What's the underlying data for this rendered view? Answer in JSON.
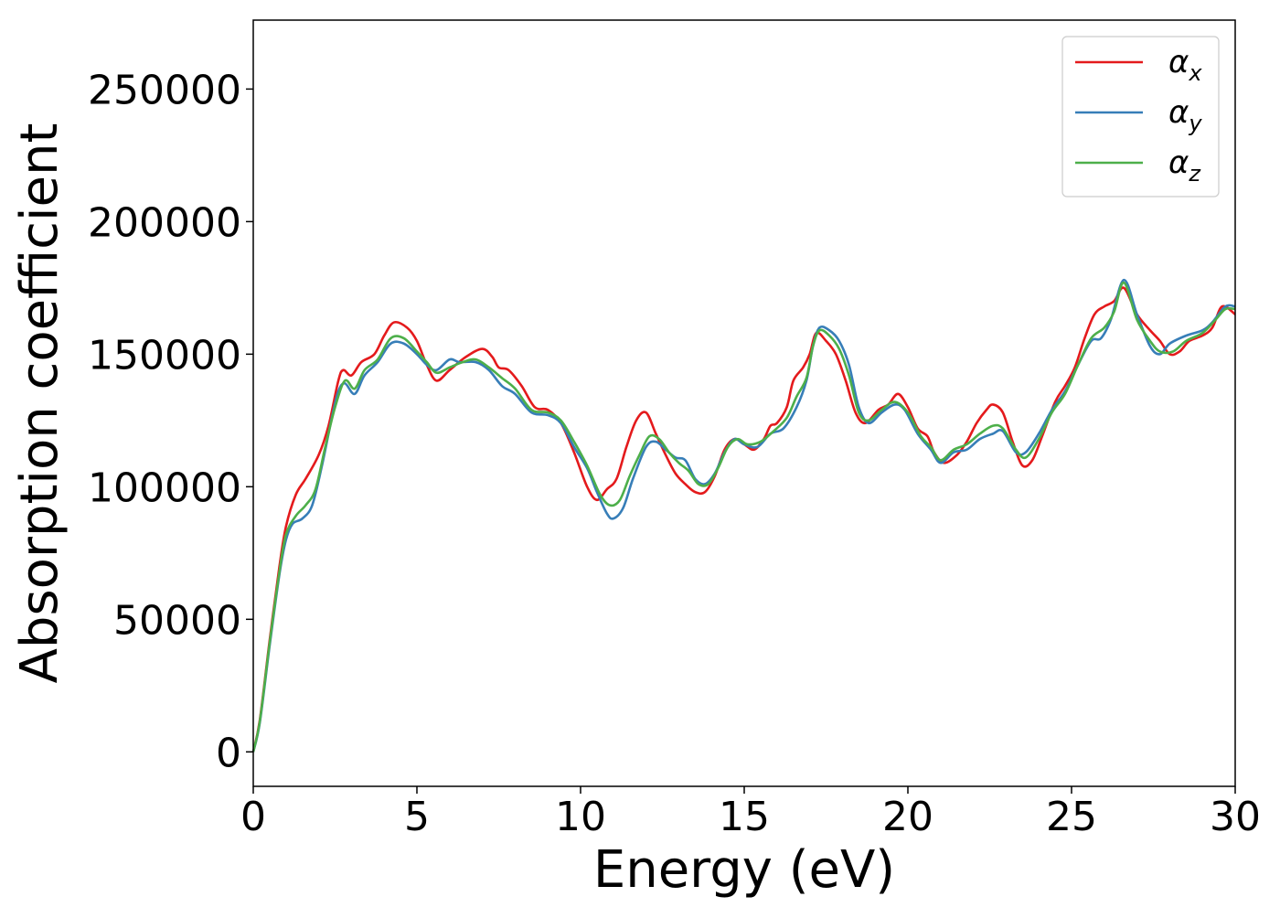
{
  "chart_data": {
    "type": "line",
    "title": "",
    "xlabel": "Energy (eV)",
    "ylabel": "Absorption coefficient",
    "xlim": [
      0,
      30
    ],
    "ylim": [
      -13000,
      276000
    ],
    "x_ticks": [
      0,
      5,
      10,
      15,
      20,
      25,
      30
    ],
    "y_ticks": [
      0,
      50000,
      100000,
      150000,
      200000,
      250000
    ],
    "x_tick_labels": [
      "0",
      "5",
      "10",
      "15",
      "20",
      "25",
      "30"
    ],
    "y_tick_labels": [
      "0",
      "50000",
      "100000",
      "150000",
      "200000",
      "250000"
    ],
    "grid": false,
    "legend_position": "top-right",
    "series": [
      {
        "name": "αx",
        "symbol": "α",
        "subscript": "x",
        "color": "#e41a1c",
        "points": [
          [
            0,
            0
          ],
          [
            0.2,
            12000
          ],
          [
            0.5,
            42000
          ],
          [
            0.8,
            70000
          ],
          [
            1.0,
            85000
          ],
          [
            1.3,
            97000
          ],
          [
            1.6,
            103000
          ],
          [
            2.0,
            112000
          ],
          [
            2.3,
            123000
          ],
          [
            2.6,
            140000
          ],
          [
            2.75,
            144000
          ],
          [
            3.0,
            142000
          ],
          [
            3.3,
            147000
          ],
          [
            3.7,
            150000
          ],
          [
            4.0,
            157000
          ],
          [
            4.3,
            162000
          ],
          [
            4.7,
            160000
          ],
          [
            5.0,
            155000
          ],
          [
            5.3,
            146000
          ],
          [
            5.6,
            140000
          ],
          [
            6.0,
            144000
          ],
          [
            6.5,
            149000
          ],
          [
            7.0,
            152000
          ],
          [
            7.3,
            149000
          ],
          [
            7.5,
            145000
          ],
          [
            7.8,
            144000
          ],
          [
            8.2,
            138000
          ],
          [
            8.6,
            130000
          ],
          [
            9.0,
            129000
          ],
          [
            9.4,
            124000
          ],
          [
            9.8,
            113000
          ],
          [
            10.2,
            100000
          ],
          [
            10.5,
            95000
          ],
          [
            10.8,
            99000
          ],
          [
            11.1,
            103000
          ],
          [
            11.4,
            115000
          ],
          [
            11.7,
            125000
          ],
          [
            12.0,
            128000
          ],
          [
            12.3,
            120000
          ],
          [
            12.6,
            112000
          ],
          [
            12.9,
            105000
          ],
          [
            13.2,
            101000
          ],
          [
            13.5,
            98000
          ],
          [
            13.8,
            98000
          ],
          [
            14.1,
            104000
          ],
          [
            14.4,
            114000
          ],
          [
            14.7,
            118000
          ],
          [
            15.0,
            116000
          ],
          [
            15.3,
            114000
          ],
          [
            15.6,
            118000
          ],
          [
            15.8,
            123000
          ],
          [
            16.0,
            124000
          ],
          [
            16.3,
            130000
          ],
          [
            16.5,
            140000
          ],
          [
            16.8,
            145000
          ],
          [
            17.0,
            150000
          ],
          [
            17.2,
            158000
          ],
          [
            17.5,
            155000
          ],
          [
            17.8,
            150000
          ],
          [
            18.1,
            140000
          ],
          [
            18.4,
            128000
          ],
          [
            18.7,
            124000
          ],
          [
            19.1,
            129000
          ],
          [
            19.4,
            131000
          ],
          [
            19.7,
            135000
          ],
          [
            20.0,
            130000
          ],
          [
            20.3,
            122000
          ],
          [
            20.6,
            119000
          ],
          [
            20.8,
            113000
          ],
          [
            21.1,
            109000
          ],
          [
            21.5,
            112000
          ],
          [
            21.8,
            117000
          ],
          [
            22.1,
            124000
          ],
          [
            22.4,
            129000
          ],
          [
            22.6,
            131000
          ],
          [
            22.9,
            128000
          ],
          [
            23.2,
            117000
          ],
          [
            23.5,
            108000
          ],
          [
            23.8,
            110000
          ],
          [
            24.1,
            119000
          ],
          [
            24.5,
            132000
          ],
          [
            24.8,
            138000
          ],
          [
            25.1,
            145000
          ],
          [
            25.4,
            156000
          ],
          [
            25.7,
            165000
          ],
          [
            26.0,
            168000
          ],
          [
            26.3,
            170000
          ],
          [
            26.6,
            175000
          ],
          [
            27.0,
            165000
          ],
          [
            27.4,
            159000
          ],
          [
            27.7,
            155000
          ],
          [
            28.0,
            150000
          ],
          [
            28.3,
            151000
          ],
          [
            28.6,
            155000
          ],
          [
            29.0,
            157000
          ],
          [
            29.3,
            160000
          ],
          [
            29.6,
            168000
          ],
          [
            30.0,
            165000
          ]
        ]
      },
      {
        "name": "αy",
        "symbol": "α",
        "subscript": "y",
        "color": "#377eb8",
        "points": [
          [
            0,
            0
          ],
          [
            0.2,
            11000
          ],
          [
            0.5,
            40000
          ],
          [
            0.8,
            67000
          ],
          [
            1.0,
            80000
          ],
          [
            1.2,
            86000
          ],
          [
            1.5,
            88000
          ],
          [
            1.8,
            93000
          ],
          [
            2.1,
            108000
          ],
          [
            2.4,
            126000
          ],
          [
            2.6,
            136000
          ],
          [
            2.8,
            139000
          ],
          [
            3.1,
            135000
          ],
          [
            3.4,
            142000
          ],
          [
            3.8,
            147000
          ],
          [
            4.2,
            154000
          ],
          [
            4.6,
            154000
          ],
          [
            5.0,
            150000
          ],
          [
            5.3,
            146000
          ],
          [
            5.6,
            144000
          ],
          [
            6.0,
            148000
          ],
          [
            6.3,
            147000
          ],
          [
            6.8,
            147000
          ],
          [
            7.2,
            144000
          ],
          [
            7.6,
            138000
          ],
          [
            8.0,
            135000
          ],
          [
            8.5,
            128000
          ],
          [
            9.0,
            127000
          ],
          [
            9.4,
            124000
          ],
          [
            9.8,
            115000
          ],
          [
            10.2,
            107000
          ],
          [
            10.5,
            98000
          ],
          [
            10.8,
            90000
          ],
          [
            11.0,
            88000
          ],
          [
            11.3,
            92000
          ],
          [
            11.6,
            103000
          ],
          [
            12.0,
            115000
          ],
          [
            12.3,
            117000
          ],
          [
            12.6,
            114000
          ],
          [
            12.9,
            111000
          ],
          [
            13.2,
            110000
          ],
          [
            13.5,
            103000
          ],
          [
            13.8,
            101000
          ],
          [
            14.1,
            105000
          ],
          [
            14.4,
            113000
          ],
          [
            14.7,
            118000
          ],
          [
            15.0,
            116000
          ],
          [
            15.4,
            115000
          ],
          [
            15.8,
            120000
          ],
          [
            16.2,
            122000
          ],
          [
            16.6,
            130000
          ],
          [
            16.9,
            140000
          ],
          [
            17.1,
            153000
          ],
          [
            17.3,
            160000
          ],
          [
            17.6,
            159000
          ],
          [
            17.9,
            155000
          ],
          [
            18.2,
            146000
          ],
          [
            18.5,
            130000
          ],
          [
            18.8,
            124000
          ],
          [
            19.2,
            128000
          ],
          [
            19.6,
            131000
          ],
          [
            19.9,
            129000
          ],
          [
            20.3,
            120000
          ],
          [
            20.7,
            114000
          ],
          [
            21.0,
            109000
          ],
          [
            21.4,
            113000
          ],
          [
            21.8,
            114000
          ],
          [
            22.2,
            118000
          ],
          [
            22.6,
            120000
          ],
          [
            22.9,
            121000
          ],
          [
            23.3,
            113000
          ],
          [
            23.6,
            113000
          ],
          [
            24.0,
            120000
          ],
          [
            24.4,
            129000
          ],
          [
            24.8,
            136000
          ],
          [
            25.2,
            146000
          ],
          [
            25.6,
            155000
          ],
          [
            25.9,
            156000
          ],
          [
            26.2,
            163000
          ],
          [
            26.6,
            178000
          ],
          [
            27.0,
            165000
          ],
          [
            27.4,
            153000
          ],
          [
            27.7,
            150000
          ],
          [
            28.0,
            154000
          ],
          [
            28.5,
            157000
          ],
          [
            29.0,
            159000
          ],
          [
            29.3,
            162000
          ],
          [
            29.7,
            168000
          ],
          [
            30.0,
            168000
          ]
        ]
      },
      {
        "name": "αz",
        "symbol": "α",
        "subscript": "z",
        "color": "#4daf4a",
        "points": [
          [
            0,
            0
          ],
          [
            0.2,
            11500
          ],
          [
            0.5,
            41000
          ],
          [
            0.8,
            68000
          ],
          [
            1.0,
            82000
          ],
          [
            1.3,
            89000
          ],
          [
            1.6,
            93000
          ],
          [
            1.9,
            99000
          ],
          [
            2.2,
            115000
          ],
          [
            2.5,
            130000
          ],
          [
            2.8,
            140000
          ],
          [
            3.1,
            137000
          ],
          [
            3.4,
            144000
          ],
          [
            3.8,
            148000
          ],
          [
            4.2,
            156000
          ],
          [
            4.6,
            156000
          ],
          [
            5.0,
            151000
          ],
          [
            5.3,
            147000
          ],
          [
            5.6,
            143000
          ],
          [
            6.0,
            145000
          ],
          [
            6.4,
            147000
          ],
          [
            6.8,
            148000
          ],
          [
            7.2,
            145000
          ],
          [
            7.6,
            141000
          ],
          [
            8.0,
            137000
          ],
          [
            8.5,
            129000
          ],
          [
            9.0,
            128000
          ],
          [
            9.4,
            125000
          ],
          [
            9.8,
            117000
          ],
          [
            10.2,
            108000
          ],
          [
            10.6,
            97000
          ],
          [
            10.9,
            93000
          ],
          [
            11.2,
            95000
          ],
          [
            11.5,
            104000
          ],
          [
            11.8,
            112000
          ],
          [
            12.1,
            119000
          ],
          [
            12.4,
            118000
          ],
          [
            12.7,
            113000
          ],
          [
            13.0,
            109000
          ],
          [
            13.3,
            106000
          ],
          [
            13.6,
            101000
          ],
          [
            13.9,
            101000
          ],
          [
            14.2,
            107000
          ],
          [
            14.5,
            115000
          ],
          [
            14.8,
            118000
          ],
          [
            15.1,
            116000
          ],
          [
            15.5,
            117000
          ],
          [
            15.9,
            121000
          ],
          [
            16.3,
            126000
          ],
          [
            16.6,
            134000
          ],
          [
            16.9,
            141000
          ],
          [
            17.1,
            153000
          ],
          [
            17.3,
            159000
          ],
          [
            17.6,
            157000
          ],
          [
            17.9,
            152000
          ],
          [
            18.2,
            142000
          ],
          [
            18.5,
            128000
          ],
          [
            18.8,
            125000
          ],
          [
            19.2,
            129000
          ],
          [
            19.6,
            132000
          ],
          [
            20.0,
            128000
          ],
          [
            20.4,
            119000
          ],
          [
            20.7,
            115000
          ],
          [
            21.0,
            110000
          ],
          [
            21.4,
            114000
          ],
          [
            21.8,
            116000
          ],
          [
            22.2,
            120000
          ],
          [
            22.6,
            123000
          ],
          [
            22.9,
            122000
          ],
          [
            23.3,
            114000
          ],
          [
            23.6,
            111000
          ],
          [
            24.0,
            118000
          ],
          [
            24.4,
            128000
          ],
          [
            24.8,
            135000
          ],
          [
            25.2,
            146000
          ],
          [
            25.6,
            156000
          ],
          [
            26.0,
            160000
          ],
          [
            26.3,
            166000
          ],
          [
            26.6,
            177000
          ],
          [
            27.0,
            163000
          ],
          [
            27.4,
            155000
          ],
          [
            27.7,
            151000
          ],
          [
            28.1,
            151000
          ],
          [
            28.5,
            155000
          ],
          [
            29.0,
            158000
          ],
          [
            29.4,
            163000
          ],
          [
            29.7,
            167000
          ],
          [
            30.0,
            167000
          ]
        ]
      }
    ]
  }
}
